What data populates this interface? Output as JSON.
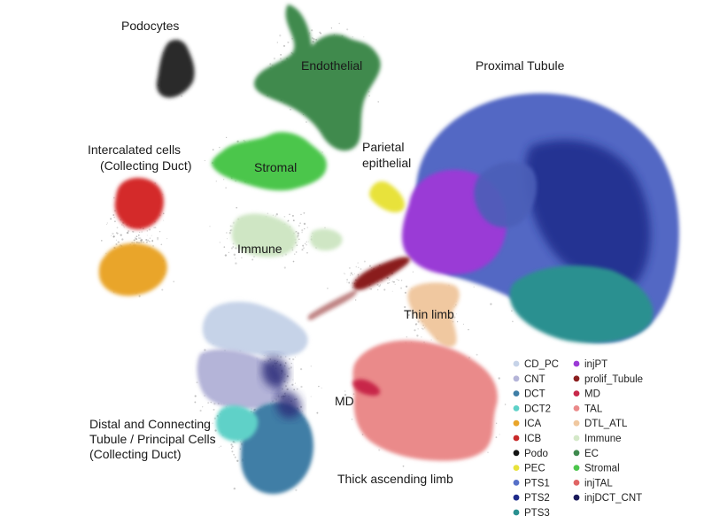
{
  "chart_data": {
    "type": "scatter",
    "title": "",
    "xlabel": "",
    "ylabel": "",
    "grid": false,
    "legend_position": "bottom-right",
    "cluster_labels": [
      {
        "lines": [
          "Podocytes"
        ]
      },
      {
        "lines": [
          "Endothelial"
        ]
      },
      {
        "lines": [
          "Proximal Tubule"
        ]
      },
      {
        "lines": [
          "Intercalated cells",
          "(Collecting Duct)"
        ]
      },
      {
        "lines": [
          "Stromal"
        ]
      },
      {
        "lines": [
          "Parietal",
          "epithelial"
        ]
      },
      {
        "lines": [
          "Immune"
        ]
      },
      {
        "lines": [
          "Thin limb"
        ]
      },
      {
        "lines": [
          "MD"
        ]
      },
      {
        "lines": [
          "Distal and Connecting",
          "Tubule / Principal Cells",
          "(Collecting Duct)"
        ]
      },
      {
        "lines": [
          "Thick ascending limb"
        ]
      }
    ],
    "legend": [
      {
        "name": "CD_PC",
        "color": "#c6d3e8"
      },
      {
        "name": "CNT",
        "color": "#b4b4d8"
      },
      {
        "name": "DCT",
        "color": "#3f7ea6"
      },
      {
        "name": "DCT2",
        "color": "#5ed1c8"
      },
      {
        "name": "ICA",
        "color": "#e9a52a"
      },
      {
        "name": "ICB",
        "color": "#c82a2a"
      },
      {
        "name": "Podo",
        "color": "#141414"
      },
      {
        "name": "PEC",
        "color": "#e8e23a"
      },
      {
        "name": "PTS1",
        "color": "#5670c8"
      },
      {
        "name": "PTS2",
        "color": "#1e2a8a"
      },
      {
        "name": "PTS3",
        "color": "#2a9090"
      },
      {
        "name": "injPT",
        "color": "#9a3ad6"
      },
      {
        "name": "prolif_Tubule",
        "color": "#8a1e1e"
      },
      {
        "name": "MD",
        "color": "#c8284a"
      },
      {
        "name": "TAL",
        "color": "#ea8a8a"
      },
      {
        "name": "DTL_ATL",
        "color": "#f0c8a0"
      },
      {
        "name": "Immune",
        "color": "#d4e8c8"
      },
      {
        "name": "EC",
        "color": "#3f8a4e"
      },
      {
        "name": "Stromal",
        "color": "#4cc64c"
      },
      {
        "name": "injTAL",
        "color": "#e06464"
      },
      {
        "name": "injDCT_CNT",
        "color": "#1a1a5a"
      }
    ]
  }
}
